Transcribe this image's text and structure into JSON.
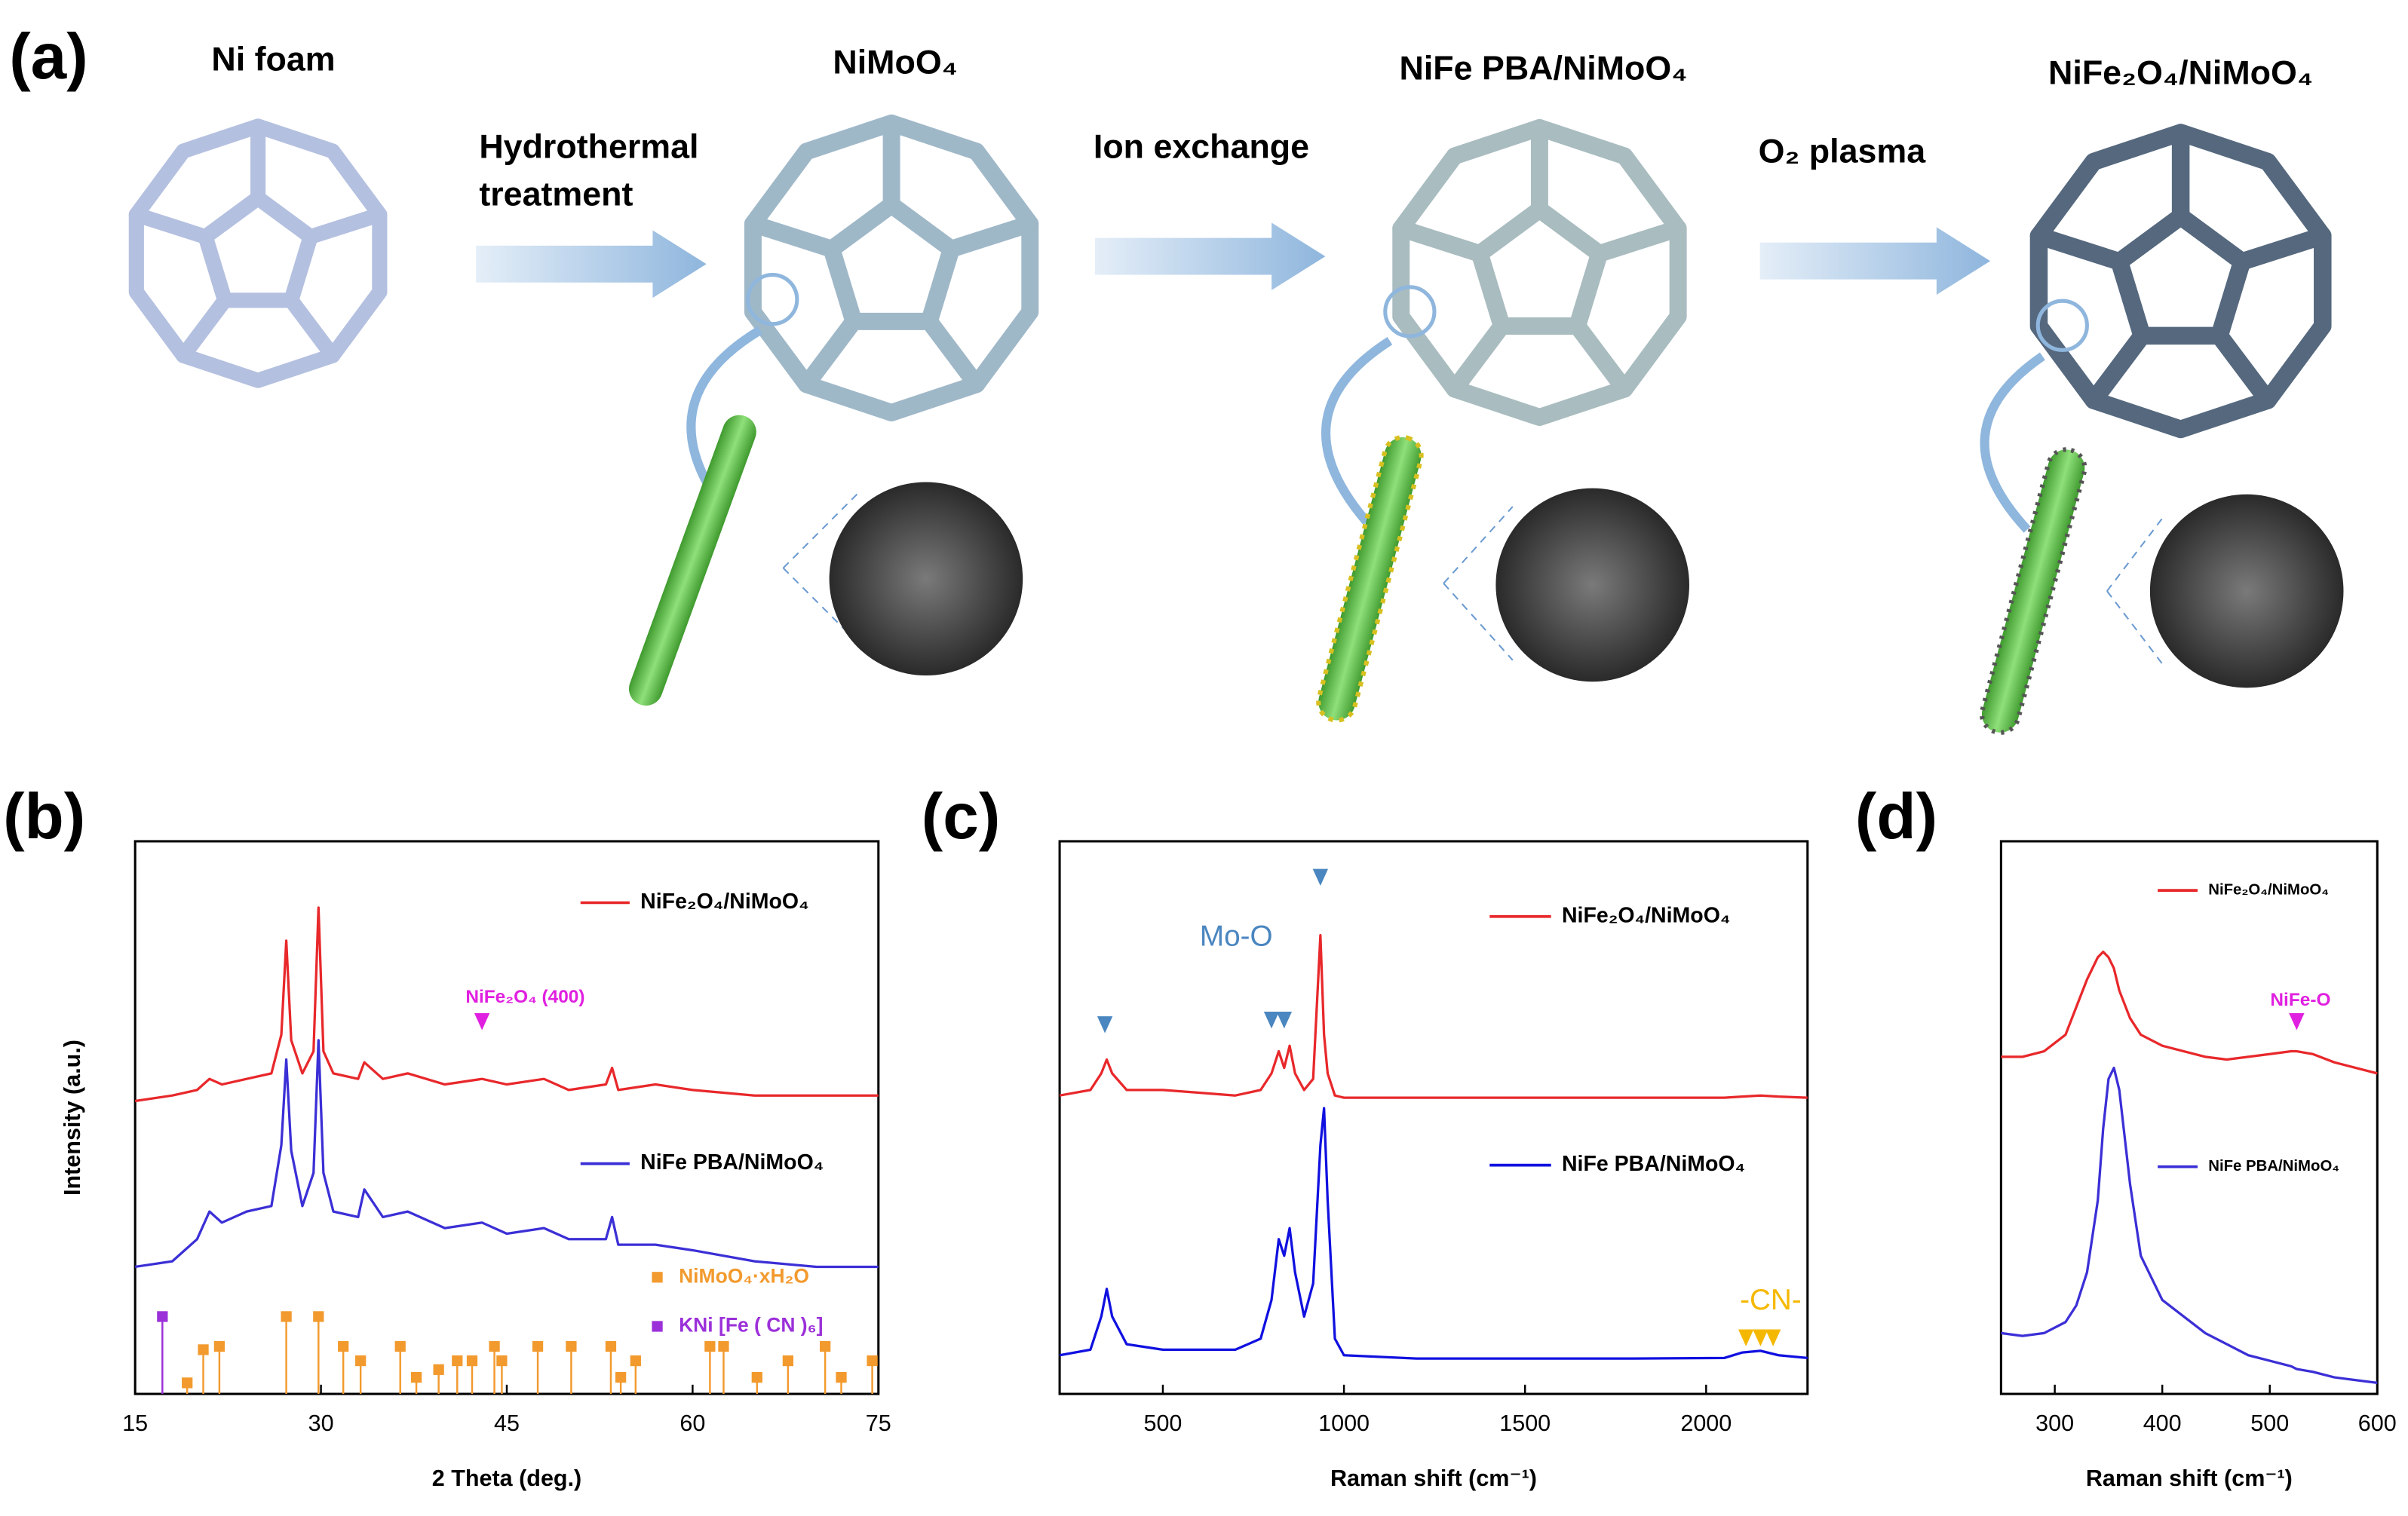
{
  "schematic": {
    "panel_label": "(a)",
    "stages": [
      "Ni foam",
      "NiMoO₄",
      "NiFe PBA/NiMoO₄",
      "NiFe₂O₄/NiMoO₄"
    ],
    "steps": [
      [
        "Hydrothermal",
        "treatment"
      ],
      [
        "Ion exchange"
      ],
      [
        "O₂ plasma"
      ]
    ]
  },
  "chart_data": [
    {
      "type": "line",
      "panel_label": "(b)",
      "xlabel": "2 Theta (deg.)",
      "ylabel": "Intensity (a.u.)",
      "xlim": [
        15,
        75
      ],
      "xticks": [
        15,
        30,
        45,
        60,
        75
      ],
      "ylim": [
        0,
        100
      ],
      "series": [
        {
          "name": "NiFe₂O₄/NiMoO₄",
          "color": "#e8282b",
          "x": [
            15,
            18,
            20,
            21,
            22,
            24,
            26,
            26.8,
            27.2,
            27.6,
            28.5,
            29.4,
            29.8,
            30.2,
            31,
            33,
            33.5,
            35,
            37,
            40,
            43,
            45,
            48,
            50,
            53,
            53.5,
            54,
            57,
            60,
            65,
            70,
            75
          ],
          "values": [
            53,
            54,
            55,
            57,
            56,
            57,
            58,
            65,
            82,
            64,
            58,
            62,
            88,
            62,
            58,
            57,
            60,
            57,
            58,
            56,
            57,
            56,
            57,
            55,
            56,
            59,
            55,
            56,
            55,
            54,
            54,
            54
          ]
        },
        {
          "name": "NiFe PBA/NiMoO₄",
          "color": "#3b2fd6",
          "x": [
            15,
            18,
            20,
            21,
            22,
            24,
            26,
            26.8,
            27.2,
            27.6,
            28.5,
            29.4,
            29.8,
            30.2,
            31,
            33,
            33.5,
            35,
            37,
            40,
            43,
            45,
            48,
            50,
            53,
            53.5,
            54,
            57,
            60,
            65,
            70,
            75
          ],
          "values": [
            23,
            24,
            28,
            33,
            31,
            33,
            34,
            45,
            60.5,
            44,
            34,
            40,
            64,
            40,
            33,
            32,
            37,
            32,
            33,
            30,
            31,
            29,
            30,
            28,
            28,
            32,
            27,
            27,
            26,
            24,
            23,
            23
          ]
        },
        {
          "name": "NiMoO₄·xH₂O",
          "type": "stick",
          "color": "#f29a2e",
          "x": [
            19.2,
            20.5,
            21.8,
            27.2,
            29.8,
            31.8,
            33.2,
            36.4,
            37.7,
            39.5,
            41,
            42.2,
            44,
            44.6,
            47.5,
            50.2,
            53.4,
            54.2,
            55.4,
            61.4,
            62.5,
            65.2,
            67.7,
            70.7,
            72,
            74.5
          ],
          "values": [
            2,
            8,
            8.6,
            14,
            14,
            8.6,
            6,
            8.6,
            3,
            4.4,
            6,
            6,
            8.6,
            6,
            8.6,
            8.6,
            8.6,
            3,
            6,
            8.6,
            8.6,
            3,
            6,
            8.6,
            3,
            6
          ]
        },
        {
          "name": "KNi [Fe ( CN )₆]",
          "type": "stick",
          "color": "#9b30d9",
          "x": [
            17.2
          ],
          "values": [
            14
          ]
        }
      ],
      "annotations": [
        {
          "text": "NiFe₂O₄ (400)",
          "color": "#e020e0",
          "x": [
            43
          ]
        }
      ]
    },
    {
      "type": "line",
      "panel_label": "(c)",
      "xlabel": "Raman shift (cm⁻¹)",
      "xlim": [
        215,
        2280
      ],
      "xticks": [
        500,
        1000,
        1500,
        2000
      ],
      "ylim": [
        0,
        100
      ],
      "series": [
        {
          "name": "NiFe₂O₄/NiMoO₄",
          "color": "#e8282b",
          "x": [
            215,
            300,
            330,
            345,
            360,
            400,
            500,
            600,
            700,
            770,
            800,
            820,
            835,
            850,
            865,
            890,
            915,
            935,
            945,
            955,
            975,
            1000,
            1200,
            1500,
            1800,
            2050,
            2100,
            2150,
            2200,
            2280
          ],
          "values": [
            54,
            55,
            58,
            60.5,
            58,
            55,
            55,
            54.5,
            54,
            55,
            58,
            62,
            59,
            63,
            58,
            55,
            57,
            83,
            65,
            58,
            54,
            53.6,
            53.6,
            53.6,
            53.6,
            53.6,
            53.8,
            54,
            53.8,
            53.6
          ]
        },
        {
          "name": "NiFe PBA/NiMoO₄",
          "color": "#1010e0",
          "x": [
            215,
            300,
            330,
            345,
            360,
            400,
            500,
            600,
            700,
            770,
            800,
            820,
            835,
            850,
            865,
            890,
            915,
            935,
            945,
            955,
            975,
            1000,
            1200,
            1500,
            1800,
            2050,
            2100,
            2150,
            2200,
            2280
          ],
          "values": [
            7,
            8,
            14,
            19,
            14,
            9,
            8,
            8,
            8,
            10,
            17,
            28,
            25,
            30,
            22,
            14,
            20,
            45,
            51.7,
            35,
            10,
            7,
            6.4,
            6.4,
            6.4,
            6.5,
            7.5,
            7.8,
            7,
            6.5
          ]
        }
      ],
      "annotations": [
        {
          "text": "Mo-O",
          "color": "#4a86c0",
          "x": [
            340,
            800,
            835,
            935
          ]
        },
        {
          "text": "-CN-",
          "color": "#f5b800",
          "x": [
            2110,
            2150,
            2185
          ]
        }
      ]
    },
    {
      "type": "line",
      "panel_label": "(d)",
      "xlabel": "Raman shift (cm⁻¹)",
      "xlim": [
        250,
        600
      ],
      "xticks": [
        300,
        400,
        500,
        600
      ],
      "ylim": [
        0,
        100
      ],
      "series": [
        {
          "name": "NiFe₂O₄/NiMoO₄",
          "color": "#e8282b",
          "x": [
            250,
            270,
            290,
            310,
            320,
            330,
            340,
            345,
            350,
            355,
            360,
            370,
            380,
            400,
            420,
            440,
            460,
            480,
            500,
            520,
            525,
            540,
            560,
            580,
            600
          ],
          "values": [
            61,
            61,
            62,
            65,
            70,
            75,
            79,
            80,
            79,
            77,
            73,
            68,
            65,
            63,
            62,
            61,
            60.5,
            61,
            61.5,
            62,
            62,
            61.5,
            60,
            59,
            58
          ]
        },
        {
          "name": "NiFe PBA/NiMoO₄",
          "color": "#3b2fd6",
          "x": [
            250,
            270,
            290,
            310,
            320,
            330,
            340,
            345,
            350,
            355,
            360,
            370,
            380,
            400,
            420,
            440,
            460,
            480,
            500,
            520,
            525,
            540,
            560,
            580,
            600
          ],
          "values": [
            11,
            10.5,
            11,
            13,
            16,
            22,
            35,
            48,
            57,
            59,
            55,
            38,
            25,
            17,
            14,
            11,
            9,
            7,
            6,
            5,
            4.5,
            4,
            3,
            2.5,
            2
          ]
        }
      ],
      "annotations": [
        {
          "text": "NiFe-O",
          "color": "#e020e0",
          "x": [
            525
          ]
        }
      ]
    }
  ]
}
